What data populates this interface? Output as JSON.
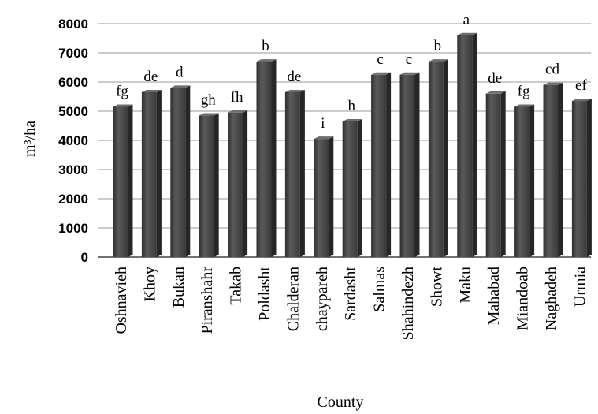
{
  "chart_data": {
    "type": "bar",
    "xlabel": "County",
    "ylabel": "m³/ha",
    "ylim": [
      0,
      8000
    ],
    "yticks": [
      0,
      1000,
      2000,
      3000,
      4000,
      5000,
      6000,
      7000,
      8000
    ],
    "grid": true,
    "categories": [
      "Oshnavieh",
      "Khoy",
      "Bukan",
      "Piranshahr",
      "Takab",
      "Poldasht",
      "Chalderan",
      "chaypareh",
      "Sardasht",
      "Salmas",
      "Shahindezh",
      "Showt",
      "Maku",
      "Mahabad",
      "Miandoab",
      "Naghadeh",
      "Urmia"
    ],
    "values": [
      5150,
      5650,
      5800,
      4850,
      4950,
      6700,
      5650,
      4050,
      4650,
      6250,
      6250,
      6700,
      7600,
      5600,
      5150,
      5900,
      5350
    ],
    "data_labels": [
      "fg",
      "de",
      "d",
      "gh",
      "fh",
      "b",
      "de",
      "i",
      "h",
      "c",
      "c",
      "b",
      "a",
      "de",
      "fg",
      "cd",
      "ef"
    ],
    "bar_color": "#4a4a4a"
  }
}
